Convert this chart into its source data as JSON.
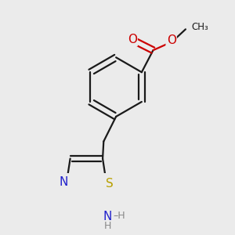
{
  "background_color": "#ebebeb",
  "bond_color": "#1a1a1a",
  "atom_colors": {
    "O": "#cc0000",
    "N": "#2222cc",
    "S": "#b8a000",
    "C": "#1a1a1a",
    "H": "#888888"
  },
  "bond_width": 1.6,
  "font_size_atoms": 10.5,
  "figsize": [
    3.0,
    3.0
  ],
  "dpi": 100
}
